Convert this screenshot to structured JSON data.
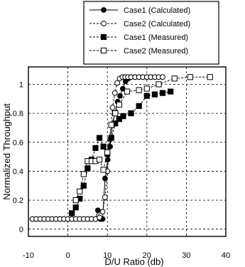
{
  "chart_data": {
    "type": "line",
    "title": "",
    "xlabel": "D/U Ratio (db)",
    "ylabel": "Normalized Throughput",
    "xlim": [
      -10,
      40
    ],
    "ylim": [
      -0.05,
      1.12
    ],
    "x_ticks": [
      -10,
      0,
      10,
      20,
      30,
      40
    ],
    "y_ticks": [
      0,
      0.2,
      0.4,
      0.6,
      0.8,
      1
    ],
    "x_tick_labels": [
      "-10",
      "0",
      "10",
      "20",
      "30",
      "40"
    ],
    "y_tick_labels": [
      "0",
      "0.2",
      "0.4",
      "0.6",
      "0.8",
      "1"
    ],
    "grid": true,
    "legend_position": "top-right",
    "series": [
      {
        "name": "Case1 (Calculated)",
        "line_style": "solid",
        "marker": "filled-circle",
        "x": [
          -9,
          -8,
          -7,
          -6,
          -5,
          -4,
          -3,
          -2,
          -1,
          0,
          1,
          2,
          3,
          4,
          5,
          6,
          7,
          7.6,
          8.2,
          8.8,
          9.4,
          10.1,
          10.7,
          11.3,
          11.9,
          12.6,
          13.2,
          13.9,
          14.6,
          15.3,
          16,
          17,
          18,
          19,
          20,
          21,
          22
        ],
        "y": [
          0.07,
          0.07,
          0.07,
          0.07,
          0.07,
          0.07,
          0.07,
          0.07,
          0.07,
          0.07,
          0.07,
          0.07,
          0.07,
          0.07,
          0.07,
          0.07,
          0.07,
          0.13,
          0.07,
          0.07,
          0.35,
          0.48,
          0.57,
          0.72,
          0.8,
          0.88,
          0.92,
          0.97,
          1.02,
          1.04,
          1.05,
          1.05,
          1.05,
          1.05,
          1.05,
          1.05,
          1.05
        ]
      },
      {
        "name": "Case2 (Calculated)",
        "line_style": "dashed",
        "marker": "open-circle",
        "x": [
          -9,
          -8,
          -7,
          -6,
          -5,
          -4,
          -3,
          -2,
          -1,
          0,
          1,
          2,
          3,
          4,
          5,
          6,
          7,
          8,
          8.8,
          9.4,
          10,
          10.7,
          11.3,
          11.9,
          12.5,
          13.1,
          13.8,
          14.5,
          15.2,
          16,
          17,
          18,
          19,
          20,
          21,
          22,
          23,
          24
        ],
        "y": [
          0.07,
          0.07,
          0.07,
          0.07,
          0.07,
          0.07,
          0.07,
          0.07,
          0.07,
          0.07,
          0.07,
          0.07,
          0.07,
          0.07,
          0.07,
          0.07,
          0.07,
          0.08,
          0.12,
          0.22,
          0.4,
          0.62,
          0.84,
          0.94,
          1.01,
          1.04,
          1.05,
          1.05,
          1.05,
          1.05,
          1.05,
          1.05,
          1.05,
          1.05,
          1.05,
          1.05,
          1.05,
          1.05
        ]
      },
      {
        "name": "Case1 (Measured)",
        "line_style": "dashed",
        "marker": "filled-square",
        "x": [
          1,
          2,
          3,
          4,
          5,
          6,
          7,
          8,
          9,
          10,
          11,
          12,
          13,
          14,
          16,
          18,
          20,
          22,
          24,
          26
        ],
        "y": [
          0.11,
          0.15,
          0.21,
          0.3,
          0.42,
          0.48,
          0.56,
          0.63,
          0.57,
          0.52,
          0.63,
          0.73,
          0.76,
          0.78,
          0.8,
          0.85,
          0.92,
          0.93,
          0.94,
          0.95
        ]
      },
      {
        "name": "Case2 (Measured)",
        "line_style": "dashed",
        "marker": "open-square",
        "x": [
          2,
          3,
          4,
          5,
          6,
          7,
          8,
          9,
          10,
          11,
          12,
          13,
          15,
          18,
          20,
          23,
          27,
          31,
          36
        ],
        "y": [
          0.2,
          0.26,
          0.38,
          0.47,
          0.47,
          0.47,
          0.48,
          0.41,
          0.53,
          0.72,
          0.8,
          0.86,
          0.95,
          0.96,
          0.97,
          1.0,
          1.04,
          1.05,
          1.05
        ]
      }
    ]
  }
}
